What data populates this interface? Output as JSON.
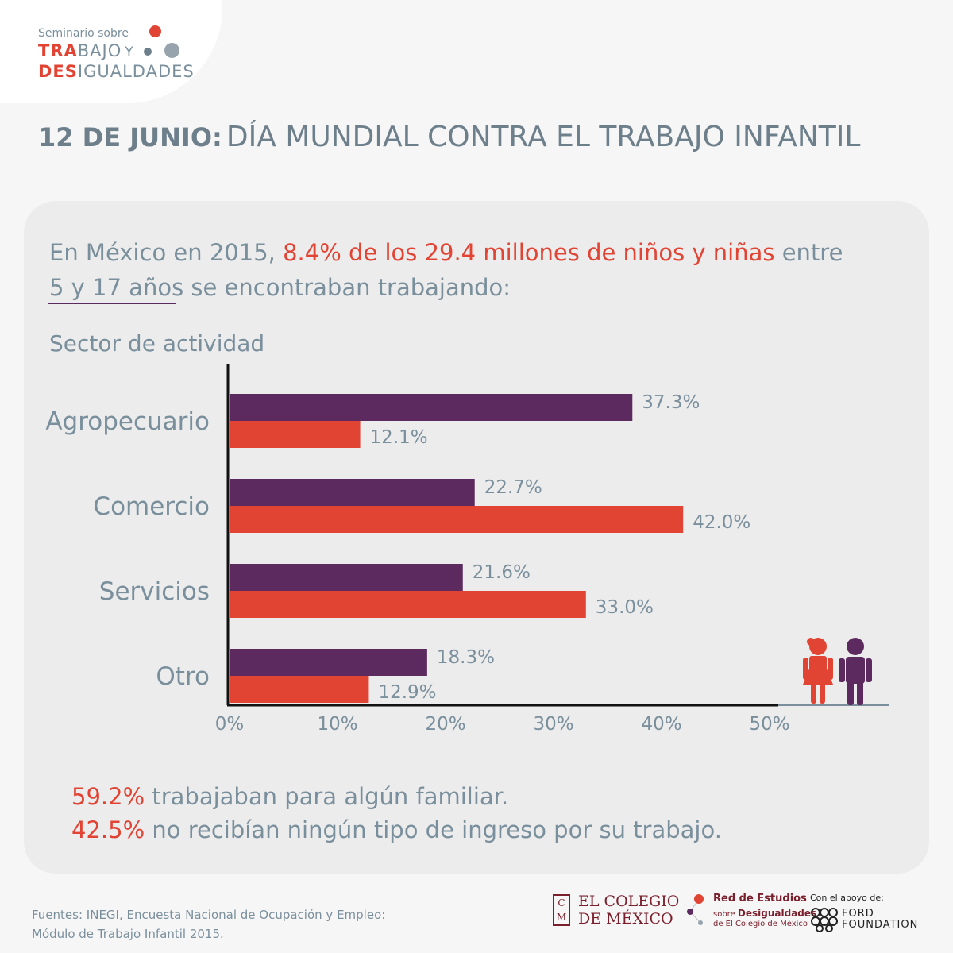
{
  "logo": {
    "line1": "Seminario sobre",
    "line2_accent": "TRA",
    "line2_rest": "BAJO",
    "line2_y": "Y",
    "line3_accent": "DES",
    "line3_rest": "IGUALDADES"
  },
  "headline": {
    "date": "12 DE JUNIO:",
    "rest": "DÍA MUNDIAL CONTRA EL TRABAJO INFANTIL"
  },
  "intro": {
    "part1": "En México en 2015, ",
    "part2_red": "8.4% de los 29.4 millones de niños y niñas",
    "part3": " entre",
    "part4": "5 y 17 años",
    "part5": " se encontraban trabajando:"
  },
  "chart_data": {
    "type": "bar",
    "orientation": "horizontal",
    "ylabel": "Sector de actividad",
    "categories": [
      "Agropecuario",
      "Comercio",
      "Servicios",
      "Otro"
    ],
    "series": [
      {
        "color": "#5c2a5e",
        "values": [
          37.3,
          22.7,
          21.6,
          18.3
        ],
        "labels": [
          "37.3%",
          "22.7%",
          "21.6%",
          "18.3%"
        ]
      },
      {
        "color": "#e24434",
        "values": [
          12.1,
          42.0,
          33.0,
          12.9
        ],
        "labels": [
          "12.1%",
          "42.0%",
          "33.0%",
          "12.9%"
        ]
      }
    ],
    "xlim": [
      0,
      50
    ],
    "xticks": [
      "0%",
      "10%",
      "20%",
      "30%",
      "40%",
      "50%"
    ],
    "grid": false
  },
  "icons": [
    "girl-icon",
    "boy-icon"
  ],
  "stats": [
    {
      "value": "59.2%",
      "text": " trabajaban para algún familiar."
    },
    {
      "value": "42.5%",
      "text": " no recibían ningún tipo de ingreso por su trabajo."
    }
  ],
  "source": {
    "line1": "Fuentes: INEGI, Encuesta Nacional de Ocupación y Empleo:",
    "line2": "Módulo de Trabajo Infantil 2015."
  },
  "footer": {
    "colmex_line1": "EL COLEGIO",
    "colmex_line2": "DE MÉXICO",
    "colmex_mono_top": "C",
    "colmex_mono_bottom": "M",
    "red_title": "Red de Estudios",
    "red_sub_small": "sobre ",
    "red_sub_bold": "Desigualdades",
    "red_sub2": "de El Colegio de México",
    "ford_label": "Con el apoyo de:",
    "ford_line1": "FORD",
    "ford_line2": "FOUNDATION"
  },
  "colors": {
    "purple": "#5c2a5e",
    "red": "#e24434",
    "text": "#7a8f9c",
    "maroon": "#7a1f2b"
  }
}
